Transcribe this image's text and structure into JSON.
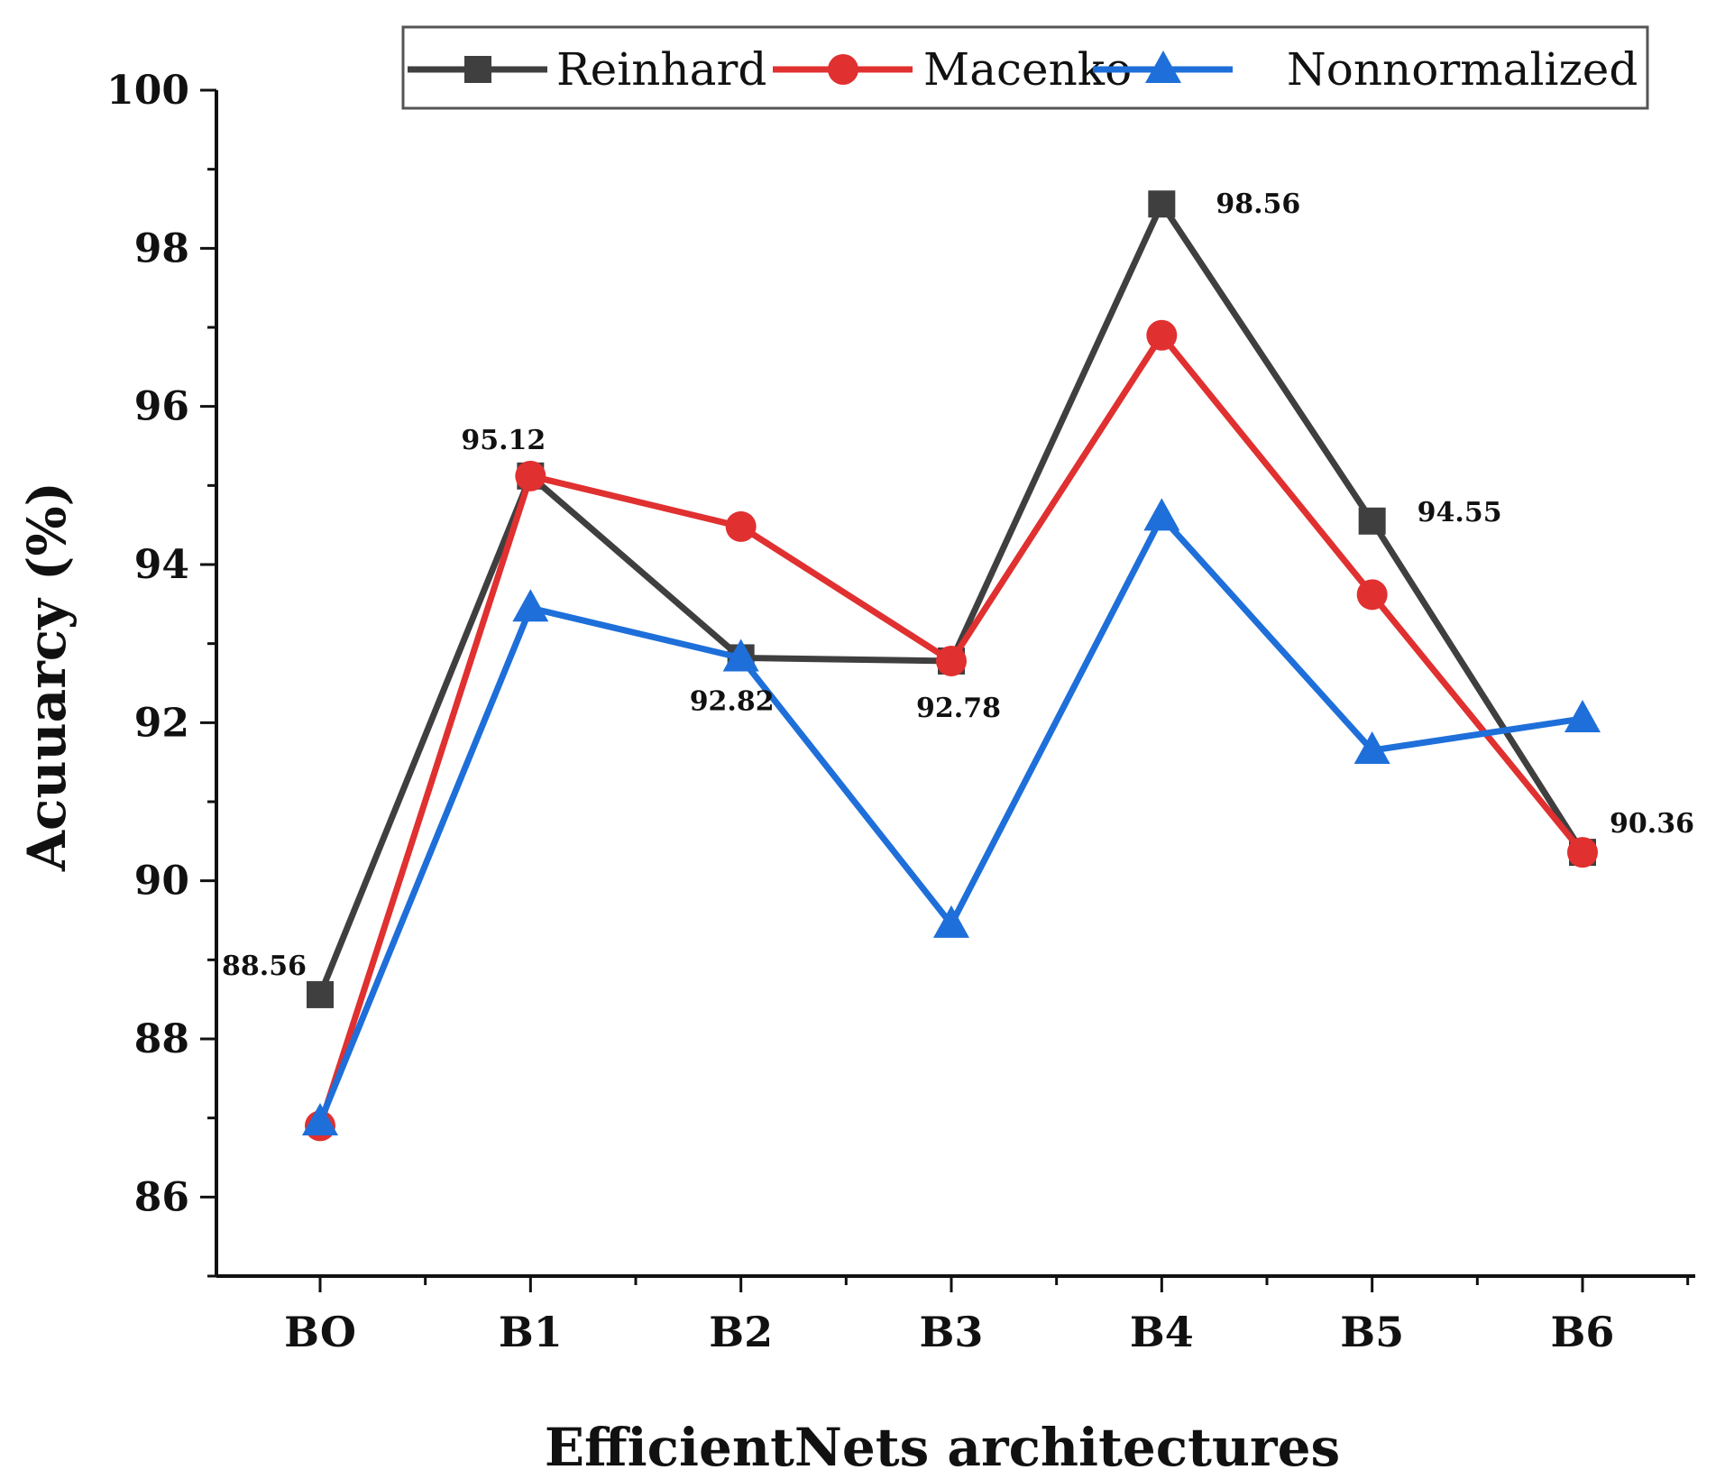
{
  "chart_data": {
    "type": "line",
    "title": "",
    "xlabel": "EfficientNets architectures",
    "ylabel": "Acuuarcy (%)",
    "categories": [
      "BO",
      "B1",
      "B2",
      "B3",
      "B4",
      "B5",
      "B6"
    ],
    "ylim": [
      85,
      100
    ],
    "yticks": [
      86,
      88,
      90,
      92,
      94,
      96,
      98,
      100
    ],
    "series": [
      {
        "name": "Reinhard",
        "color": "#3f3f3f",
        "marker": "square",
        "values": [
          88.56,
          95.12,
          92.82,
          92.78,
          98.56,
          94.55,
          90.36
        ]
      },
      {
        "name": "Macenko",
        "color": "#e03030",
        "marker": "circle",
        "values": [
          86.9,
          95.12,
          94.48,
          92.78,
          96.9,
          93.62,
          90.36
        ]
      },
      {
        "name": "Nonnormalized",
        "color": "#1e6fd9",
        "marker": "triangle",
        "values": [
          86.95,
          93.45,
          92.82,
          89.45,
          94.6,
          91.65,
          92.05
        ]
      }
    ],
    "annotations": [
      {
        "text": "88.56",
        "category": "BO",
        "value": 88.56
      },
      {
        "text": "95.12",
        "category": "B1",
        "value": 95.12
      },
      {
        "text": "92.82",
        "category": "B2",
        "value": 92.82
      },
      {
        "text": "92.78",
        "category": "B3",
        "value": 92.78
      },
      {
        "text": "98.56",
        "category": "B4",
        "value": 98.56
      },
      {
        "text": "94.55",
        "category": "B5",
        "value": 94.55
      },
      {
        "text": "90.36",
        "category": "B6",
        "value": 90.36
      }
    ],
    "legend": "top-right"
  }
}
